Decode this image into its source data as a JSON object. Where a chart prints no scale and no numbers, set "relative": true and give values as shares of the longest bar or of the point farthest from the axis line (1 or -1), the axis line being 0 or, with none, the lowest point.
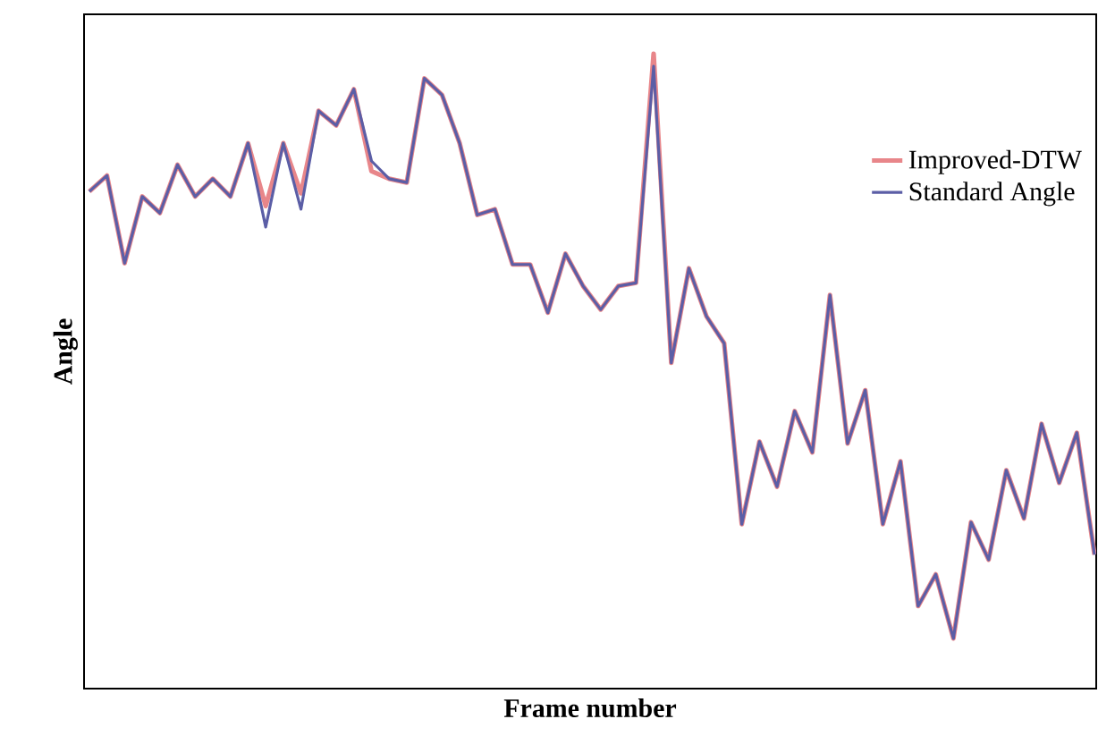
{
  "chart_data": {
    "type": "line",
    "xlabel": "Frame number",
    "ylabel": "Angle",
    "relative": true,
    "tick_labels": false,
    "legend": "right",
    "categories": [
      null,
      null,
      null,
      null,
      null,
      null,
      null,
      null,
      null,
      null,
      null,
      null,
      null,
      null,
      null,
      null,
      null,
      null,
      null,
      null,
      null,
      null,
      null,
      null,
      null,
      null,
      null,
      null,
      null,
      null,
      null,
      null,
      null,
      null,
      null,
      null,
      null,
      null,
      null,
      null,
      null,
      null,
      null,
      null,
      null,
      null,
      null,
      null,
      null,
      null,
      null,
      null,
      null,
      null,
      null,
      null,
      null,
      null
    ],
    "series": [
      {
        "name": "Improved-DTW",
        "color": "#e8868a",
        "values": [
          0.783,
          0.808,
          0.67,
          0.775,
          0.749,
          0.825,
          0.775,
          0.803,
          0.775,
          0.859,
          0.76,
          0.859,
          0.78,
          0.91,
          0.887,
          0.944,
          0.815,
          0.803,
          0.797,
          0.961,
          0.935,
          0.859,
          0.746,
          0.755,
          0.668,
          0.668,
          0.592,
          0.685,
          0.634,
          0.597,
          0.634,
          0.639,
          1.0,
          0.513,
          0.662,
          0.586,
          0.544,
          0.259,
          0.389,
          0.318,
          0.437,
          0.372,
          0.62,
          0.386,
          0.47,
          0.259,
          0.358,
          0.13,
          0.18,
          0.079,
          0.262,
          0.203,
          0.344,
          0.268,
          0.417,
          0.324,
          0.403,
          0.211
        ]
      },
      {
        "name": "Standard Angle",
        "color": "#5b5ea6",
        "values": [
          0.783,
          0.808,
          0.67,
          0.775,
          0.749,
          0.825,
          0.775,
          0.803,
          0.775,
          0.859,
          0.727,
          0.859,
          0.755,
          0.91,
          0.887,
          0.944,
          0.831,
          0.803,
          0.797,
          0.961,
          0.935,
          0.859,
          0.746,
          0.755,
          0.668,
          0.668,
          0.592,
          0.685,
          0.634,
          0.597,
          0.634,
          0.639,
          0.98,
          0.513,
          0.662,
          0.586,
          0.544,
          0.259,
          0.389,
          0.318,
          0.437,
          0.372,
          0.62,
          0.386,
          0.47,
          0.259,
          0.358,
          0.13,
          0.18,
          0.079,
          0.262,
          0.203,
          0.344,
          0.268,
          0.417,
          0.324,
          0.403,
          0.211
        ]
      }
    ]
  }
}
